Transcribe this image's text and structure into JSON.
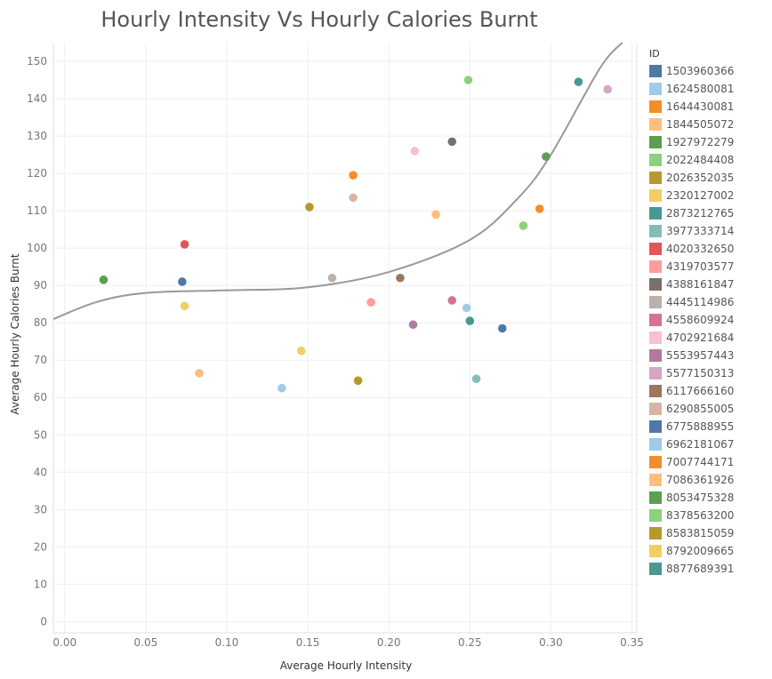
{
  "chart_data": {
    "type": "scatter",
    "title": "Hourly Intensity Vs Hourly Calories Burnt",
    "xlabel": "Average Hourly Intensity",
    "ylabel": "Average Hourly Calories Burnt",
    "xlim": [
      -0.007,
      0.353
    ],
    "ylim": [
      -3,
      155
    ],
    "x_ticks": [
      "0.00",
      "0.05",
      "0.10",
      "0.15",
      "0.20",
      "0.25",
      "0.30",
      "0.35"
    ],
    "y_ticks": [
      "0",
      "10",
      "20",
      "30",
      "40",
      "50",
      "60",
      "70",
      "80",
      "90",
      "100",
      "110",
      "120",
      "130",
      "140",
      "150"
    ],
    "grid": true,
    "legend_title": "ID",
    "legend_position": "right",
    "trend_line": {
      "type": "polynomial",
      "points": [
        [
          -0.007,
          81
        ],
        [
          0.02,
          85.6
        ],
        [
          0.05,
          88.0
        ],
        [
          0.1,
          88.7
        ],
        [
          0.15,
          89.5
        ],
        [
          0.2,
          93.6
        ],
        [
          0.25,
          102.2
        ],
        [
          0.28,
          113.5
        ],
        [
          0.3,
          125
        ],
        [
          0.33,
          148
        ],
        [
          0.344,
          155
        ]
      ],
      "color": "#999999"
    },
    "series": [
      {
        "name": "1503960366",
        "color": "#4e79a7",
        "x": 0.27,
        "y": 78.5
      },
      {
        "name": "1624580081",
        "color": "#a0cbe8",
        "x": 0.248,
        "y": 84.0
      },
      {
        "name": "1644430081",
        "color": "#f28e2b",
        "x": 0.178,
        "y": 119.5
      },
      {
        "name": "1844505072",
        "color": "#ffbe7d",
        "x": 0.229,
        "y": 109.0
      },
      {
        "name": "1927972279",
        "color": "#59a14f",
        "x": 0.297,
        "y": 124.5
      },
      {
        "name": "2022484408",
        "color": "#8cd17d",
        "x": 0.249,
        "y": 145.0
      },
      {
        "name": "2026352035",
        "color": "#b6992d",
        "x": 0.151,
        "y": 111.0
      },
      {
        "name": "2320127002",
        "color": "#f1ce63",
        "x": 0.146,
        "y": 72.5
      },
      {
        "name": "2873212765",
        "color": "#499894",
        "x": 0.317,
        "y": 144.5
      },
      {
        "name": "3977333714",
        "color": "#86bcb6",
        "x": 0.254,
        "y": 65.0
      },
      {
        "name": "4020332650",
        "color": "#e15759",
        "x": 0.074,
        "y": 101.0
      },
      {
        "name": "4319703577",
        "color": "#ff9d9a",
        "x": 0.189,
        "y": 85.5
      },
      {
        "name": "4388161847",
        "color": "#79706e",
        "x": 0.239,
        "y": 128.5
      },
      {
        "name": "4445114986",
        "color": "#bab0ac",
        "x": 0.165,
        "y": 92.0
      },
      {
        "name": "4558609924",
        "color": "#d37295",
        "x": 0.239,
        "y": 86.0
      },
      {
        "name": "4702921684",
        "color": "#fabfd2",
        "x": 0.216,
        "y": 126.0
      },
      {
        "name": "5553957443",
        "color": "#b07aa1",
        "x": 0.215,
        "y": 79.5
      },
      {
        "name": "5577150313",
        "color": "#d4a6c8",
        "x": 0.335,
        "y": 142.5
      },
      {
        "name": "6117666160",
        "color": "#9d7660",
        "x": 0.207,
        "y": 92.0
      },
      {
        "name": "6290855005",
        "color": "#d7b5a6",
        "x": 0.178,
        "y": 113.5
      },
      {
        "name": "6775888955",
        "color": "#4e79a7",
        "x": 0.0725,
        "y": 91.0
      },
      {
        "name": "6962181067",
        "color": "#a0cbe8",
        "x": 0.134,
        "y": 62.5
      },
      {
        "name": "7007744171",
        "color": "#f28e2b",
        "x": 0.293,
        "y": 110.5
      },
      {
        "name": "7086361926",
        "color": "#ffbe7d",
        "x": 0.083,
        "y": 66.5
      },
      {
        "name": "8053475328",
        "color": "#59a14f",
        "x": 0.024,
        "y": 91.5
      },
      {
        "name": "8378563200",
        "color": "#8cd17d",
        "x": 0.283,
        "y": 106.0
      },
      {
        "name": "8583815059",
        "color": "#b6992d",
        "x": 0.181,
        "y": 64.5
      },
      {
        "name": "8792009665",
        "color": "#f1ce63",
        "x": 0.074,
        "y": 84.5
      },
      {
        "name": "8877689391",
        "color": "#499894",
        "x": 0.25,
        "y": 80.5
      }
    ]
  }
}
